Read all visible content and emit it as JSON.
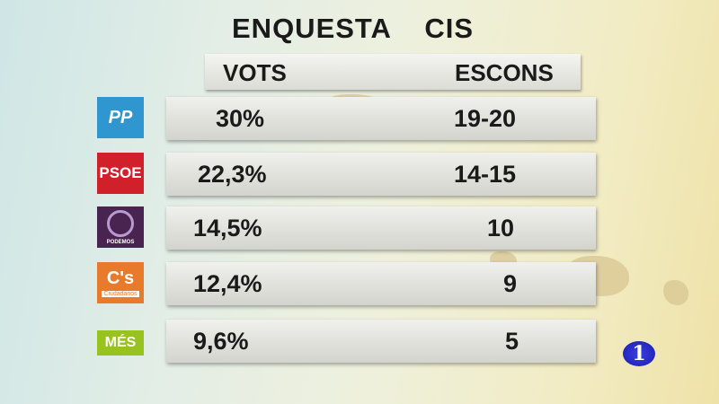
{
  "title": "ENQUESTA CIS",
  "chart_data": {
    "type": "table",
    "columns": [
      "VOTS",
      "ESCONS"
    ],
    "rows": [
      {
        "party": "PP",
        "logo_text": "PP",
        "color": "#2f96d0",
        "votes": "30%",
        "seats": "19-20"
      },
      {
        "party": "PSOE",
        "logo_text": "PSOE",
        "color": "#d0202a",
        "votes": "22,3%",
        "seats": "14-15"
      },
      {
        "party": "Podemos",
        "logo_text": "PODEMOS",
        "color": "#4a2450",
        "votes": "14,5%",
        "seats": "10"
      },
      {
        "party": "Ciudadanos",
        "logo_text": "C's",
        "color": "#e87a2c",
        "votes": "12,4%",
        "seats": "9"
      },
      {
        "party": "Més",
        "logo_text": "MÉS",
        "color": "#98c21e",
        "votes": "9,6%",
        "seats": "5"
      }
    ]
  },
  "channel_logo": "1"
}
